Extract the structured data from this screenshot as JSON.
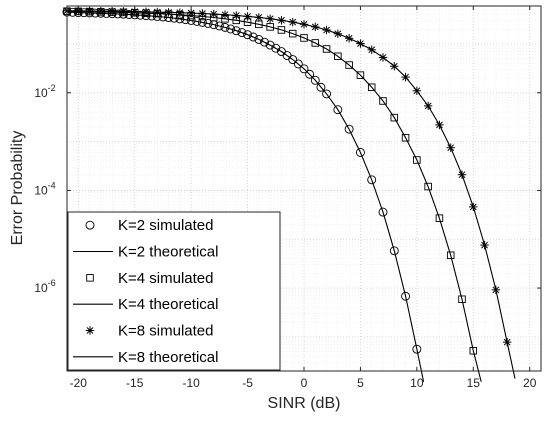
{
  "chart_data": {
    "type": "line",
    "xlabel": "SINR (dB)",
    "ylabel": "Error Probability",
    "xlim": [
      -21,
      21
    ],
    "ylim": [
      2e-08,
      0.6
    ],
    "yscale": "log",
    "grid": "major and minor, dotted",
    "legend_position": "bottom-left",
    "x_ticks": [
      -20,
      -15,
      -10,
      -5,
      0,
      5,
      10,
      15,
      20
    ],
    "x_tick_labels": [
      "-20",
      "-15",
      "-10",
      "-5",
      "0",
      "5",
      "10",
      "15",
      "20"
    ],
    "y_ticks": [
      {
        "base": "10",
        "exp": "-2",
        "value": 0.01
      },
      {
        "base": "10",
        "exp": "-4",
        "value": 0.0001
      },
      {
        "base": "10",
        "exp": "-6",
        "value": 1e-06
      }
    ],
    "series": [
      {
        "name": "K=2 simulated",
        "kind": "markers",
        "marker": "circle",
        "K": 2
      },
      {
        "name": "K=2 theoretical",
        "kind": "line",
        "K": 2
      },
      {
        "name": "K=4 simulated",
        "kind": "markers",
        "marker": "square",
        "K": 4
      },
      {
        "name": "K=4 theoretical",
        "kind": "line",
        "K": 4
      },
      {
        "name": "K=8 simulated",
        "kind": "markers",
        "marker": "asterisk",
        "K": 8
      },
      {
        "name": "K=8 theoretical",
        "kind": "line",
        "K": 8
      }
    ],
    "points": {
      "K2": [
        [
          -21,
          0.45
        ],
        [
          -20,
          0.44
        ],
        [
          -19,
          0.434
        ],
        [
          -18,
          0.426
        ],
        [
          -17,
          0.418
        ],
        [
          -16,
          0.408
        ],
        [
          -15,
          0.396
        ],
        [
          -14,
          0.382
        ],
        [
          -13,
          0.366
        ],
        [
          -12,
          0.348
        ],
        [
          -11,
          0.327
        ],
        [
          -10,
          0.303
        ],
        [
          -9,
          0.277
        ],
        [
          -8,
          0.249
        ],
        [
          -7,
          0.219
        ],
        [
          -6,
          0.187
        ],
        [
          -5,
          0.155
        ],
        [
          -4,
          0.124
        ],
        [
          -3,
          0.095
        ],
        [
          -2,
          0.07
        ],
        [
          -1,
          0.048
        ],
        [
          0,
          0.031
        ],
        [
          1,
          0.018
        ],
        [
          2,
          0.0095
        ],
        [
          3,
          0.0045
        ],
        [
          4,
          0.0018
        ],
        [
          5,
          0.0006
        ],
        [
          6,
          0.000165
        ],
        [
          7,
          3.6e-05
        ],
        [
          8,
          5.8e-06
        ],
        [
          9,
          6.8e-07
        ],
        [
          10,
          5.6e-08
        ],
        [
          10.6,
          1.2e-08
        ]
      ],
      "K4": [
        [
          -21,
          0.47
        ],
        [
          -20,
          0.465
        ],
        [
          -19,
          0.46
        ],
        [
          -18,
          0.455
        ],
        [
          -17,
          0.449
        ],
        [
          -16,
          0.443
        ],
        [
          -15,
          0.436
        ],
        [
          -14,
          0.428
        ],
        [
          -13,
          0.419
        ],
        [
          -12,
          0.408
        ],
        [
          -11,
          0.396
        ],
        [
          -10,
          0.382
        ],
        [
          -9,
          0.366
        ],
        [
          -8,
          0.348
        ],
        [
          -7,
          0.328
        ],
        [
          -6,
          0.305
        ],
        [
          -5,
          0.28
        ],
        [
          -4,
          0.253
        ],
        [
          -3,
          0.224
        ],
        [
          -2,
          0.194
        ],
        [
          -1,
          0.163
        ],
        [
          0,
          0.133
        ],
        [
          1,
          0.105
        ],
        [
          2,
          0.079
        ],
        [
          3,
          0.056
        ],
        [
          4,
          0.037
        ],
        [
          5,
          0.023
        ],
        [
          6,
          0.013
        ],
        [
          7,
          0.0068
        ],
        [
          8,
          0.0031
        ],
        [
          9,
          0.0012
        ],
        [
          10,
          0.00042
        ],
        [
          11,
          0.00012
        ],
        [
          12,
          2.7e-05
        ],
        [
          13,
          4.7e-06
        ],
        [
          14,
          5.9e-07
        ],
        [
          15,
          5.2e-08
        ],
        [
          15.7,
          1.2e-08
        ]
      ],
      "K8": [
        [
          -21,
          0.48
        ],
        [
          -20,
          0.478
        ],
        [
          -19,
          0.475
        ],
        [
          -18,
          0.472
        ],
        [
          -17,
          0.469
        ],
        [
          -16,
          0.465
        ],
        [
          -15,
          0.461
        ],
        [
          -14,
          0.456
        ],
        [
          -13,
          0.451
        ],
        [
          -12,
          0.445
        ],
        [
          -11,
          0.438
        ],
        [
          -10,
          0.43
        ],
        [
          -9,
          0.421
        ],
        [
          -8,
          0.41
        ],
        [
          -7,
          0.398
        ],
        [
          -6,
          0.384
        ],
        [
          -5,
          0.368
        ],
        [
          -4,
          0.35
        ],
        [
          -3,
          0.329
        ],
        [
          -2,
          0.306
        ],
        [
          -1,
          0.281
        ],
        [
          0,
          0.253
        ],
        [
          1,
          0.224
        ],
        [
          2,
          0.193
        ],
        [
          3,
          0.162
        ],
        [
          4,
          0.131
        ],
        [
          5,
          0.102
        ],
        [
          6,
          0.076
        ],
        [
          7,
          0.053
        ],
        [
          8,
          0.035
        ],
        [
          9,
          0.021
        ],
        [
          10,
          0.011
        ],
        [
          11,
          0.0054
        ],
        [
          12,
          0.0022
        ],
        [
          13,
          0.00075
        ],
        [
          14,
          0.00021
        ],
        [
          15,
          4.6e-05
        ],
        [
          16,
          7.6e-06
        ],
        [
          17,
          9.2e-07
        ],
        [
          18,
          7.8e-08
        ],
        [
          18.7,
          1.4e-08
        ]
      ]
    },
    "simulated_markers": {
      "K2": [
        [
          -21,
          0.45
        ],
        [
          -20.5,
          0.445
        ],
        [
          -20,
          0.44
        ],
        [
          -19.5,
          0.437
        ],
        [
          -19,
          0.434
        ],
        [
          -18.5,
          0.43
        ],
        [
          -18,
          0.426
        ],
        [
          -17.5,
          0.422
        ],
        [
          -17,
          0.418
        ],
        [
          -16.5,
          0.413
        ],
        [
          -16,
          0.408
        ],
        [
          -15.5,
          0.402
        ],
        [
          -15,
          0.396
        ],
        [
          -14.5,
          0.389
        ],
        [
          -14,
          0.382
        ],
        [
          -13.5,
          0.374
        ],
        [
          -13,
          0.366
        ],
        [
          -12.5,
          0.357
        ],
        [
          -12,
          0.348
        ],
        [
          -11.5,
          0.338
        ],
        [
          -11,
          0.327
        ],
        [
          -10.5,
          0.315
        ],
        [
          -10,
          0.303
        ],
        [
          -9.5,
          0.29
        ],
        [
          -9,
          0.277
        ],
        [
          -8.5,
          0.263
        ],
        [
          -8,
          0.249
        ],
        [
          -7.5,
          0.234
        ],
        [
          -7,
          0.219
        ],
        [
          -6.5,
          0.203
        ],
        [
          -6,
          0.187
        ],
        [
          -5.5,
          0.171
        ],
        [
          -5,
          0.155
        ],
        [
          -4.5,
          0.139
        ],
        [
          -4,
          0.124
        ],
        [
          -3.5,
          0.109
        ],
        [
          -3,
          0.095
        ],
        [
          -2.5,
          0.082
        ],
        [
          -2,
          0.07
        ],
        [
          -1.5,
          0.058
        ],
        [
          -1,
          0.048
        ],
        [
          -0.5,
          0.039
        ],
        [
          0,
          0.031
        ],
        [
          0.5,
          0.024
        ],
        [
          1,
          0.018
        ],
        [
          1.5,
          0.013
        ],
        [
          2,
          0.0095
        ],
        [
          3,
          0.0045
        ],
        [
          4,
          0.0018
        ],
        [
          5,
          0.0006
        ],
        [
          6,
          0.000165
        ],
        [
          7,
          3.6e-05
        ],
        [
          8,
          5.8e-06
        ],
        [
          9,
          6.8e-07
        ],
        [
          10,
          5.6e-08
        ]
      ],
      "K4": [
        [
          -21,
          0.47
        ],
        [
          -20,
          0.465
        ],
        [
          -19,
          0.46
        ],
        [
          -18,
          0.455
        ],
        [
          -17,
          0.449
        ],
        [
          -16,
          0.443
        ],
        [
          -15,
          0.436
        ],
        [
          -14,
          0.428
        ],
        [
          -13,
          0.419
        ],
        [
          -12,
          0.408
        ],
        [
          -11,
          0.396
        ],
        [
          -10,
          0.382
        ],
        [
          -9,
          0.366
        ],
        [
          -8,
          0.348
        ],
        [
          -7,
          0.328
        ],
        [
          -6,
          0.305
        ],
        [
          -5,
          0.28
        ],
        [
          -4,
          0.253
        ],
        [
          -3,
          0.224
        ],
        [
          -2,
          0.194
        ],
        [
          -1,
          0.163
        ],
        [
          0,
          0.133
        ],
        [
          1,
          0.105
        ],
        [
          2,
          0.079
        ],
        [
          3,
          0.056
        ],
        [
          4,
          0.037
        ],
        [
          5,
          0.023
        ],
        [
          6,
          0.013
        ],
        [
          7,
          0.0068
        ],
        [
          8,
          0.0031
        ],
        [
          9,
          0.0012
        ],
        [
          10,
          0.00042
        ],
        [
          11,
          0.00012
        ],
        [
          12,
          2.7e-05
        ],
        [
          13,
          4.7e-06
        ],
        [
          14,
          5.9e-07
        ],
        [
          15,
          5.2e-08
        ]
      ],
      "K8": [
        [
          -21,
          0.48
        ],
        [
          -20,
          0.478
        ],
        [
          -19,
          0.475
        ],
        [
          -18,
          0.472
        ],
        [
          -17,
          0.469
        ],
        [
          -16,
          0.465
        ],
        [
          -15,
          0.461
        ],
        [
          -14,
          0.456
        ],
        [
          -13,
          0.451
        ],
        [
          -12,
          0.445
        ],
        [
          -11,
          0.438
        ],
        [
          -10,
          0.43
        ],
        [
          -9,
          0.421
        ],
        [
          -8,
          0.41
        ],
        [
          -7,
          0.398
        ],
        [
          -6,
          0.384
        ],
        [
          -5,
          0.368
        ],
        [
          -4,
          0.35
        ],
        [
          -3,
          0.329
        ],
        [
          -2,
          0.306
        ],
        [
          -1,
          0.281
        ],
        [
          0,
          0.253
        ],
        [
          1,
          0.224
        ],
        [
          2,
          0.193
        ],
        [
          3,
          0.162
        ],
        [
          4,
          0.131
        ],
        [
          5,
          0.102
        ],
        [
          6,
          0.076
        ],
        [
          7,
          0.053
        ],
        [
          8,
          0.035
        ],
        [
          9,
          0.021
        ],
        [
          10,
          0.011
        ],
        [
          11,
          0.0054
        ],
        [
          12,
          0.0022
        ],
        [
          13,
          0.00075
        ],
        [
          14,
          0.00021
        ],
        [
          15,
          4.6e-05
        ],
        [
          16,
          7.6e-06
        ],
        [
          17,
          9.2e-07
        ],
        [
          18,
          7.8e-08
        ]
      ]
    }
  }
}
